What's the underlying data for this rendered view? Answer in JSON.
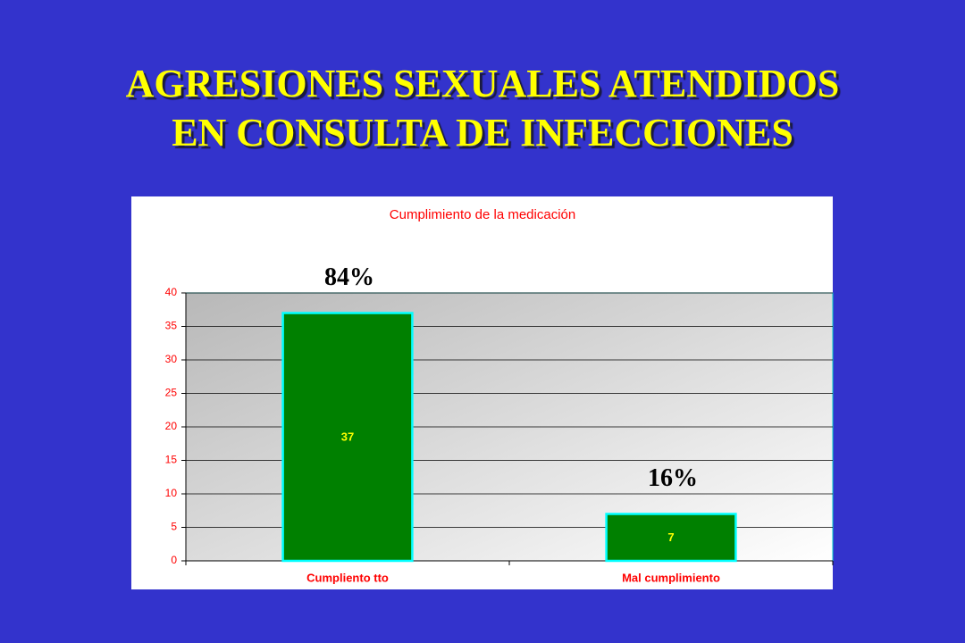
{
  "title_lines": [
    "AGRESIONES SEXUALES ATENDIDOS",
    "EN CONSULTA DE INFECCIONES"
  ],
  "chart_data": {
    "type": "bar",
    "title": "Cumplimiento de la medicación",
    "categories": [
      "Cumpliento tto",
      "Mal cumplimiento"
    ],
    "values": [
      37,
      7
    ],
    "percent_labels": [
      "84%",
      "16%"
    ],
    "color": "#008000",
    "edge_color": "#00ffff",
    "label_color": "#ffff00",
    "ylim": [
      0,
      40
    ],
    "yticks": [
      0,
      5,
      10,
      15,
      20,
      25,
      30,
      35,
      40
    ],
    "grid": true
  }
}
